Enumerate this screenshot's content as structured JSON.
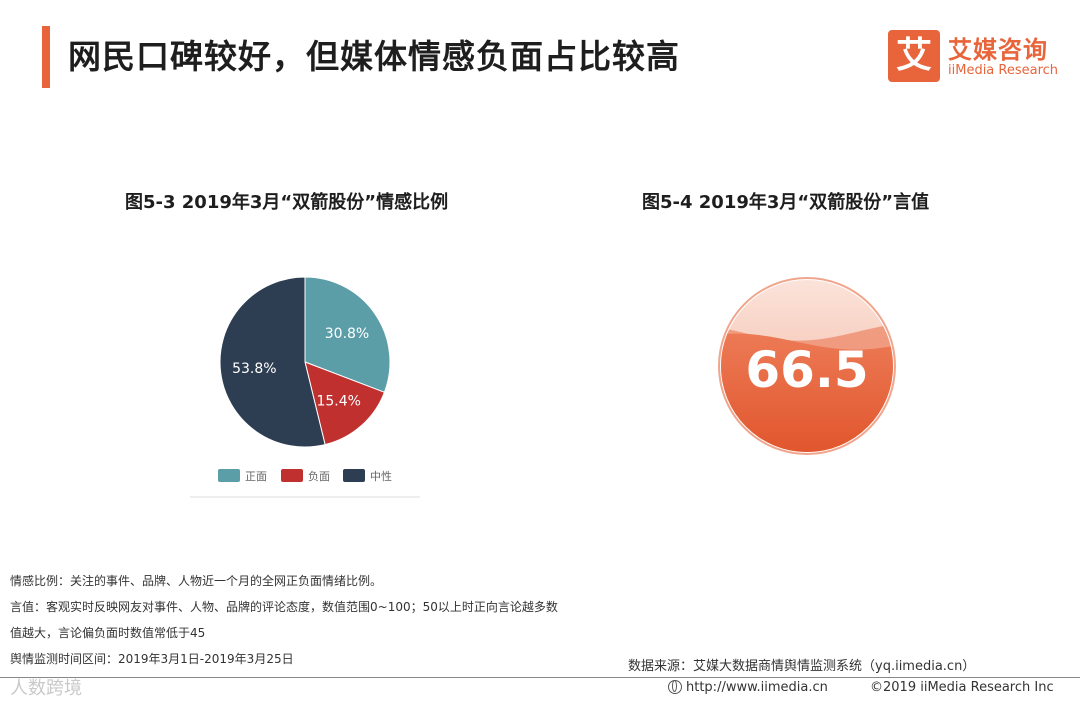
{
  "header": {
    "title": "网民口碑较好，但媒体情感负面占比较高",
    "logo_mark": "艾",
    "logo_cn": "艾媒咨询",
    "logo_en": "iiMedia Research"
  },
  "chart_data": [
    {
      "type": "pie",
      "title": "图5-3 2019年3月“双箭股份”情感比例",
      "categories": [
        "正面",
        "负面",
        "中性"
      ],
      "values": [
        30.8,
        15.4,
        53.8
      ],
      "data_labels": [
        "30.8%",
        "15.4%",
        "53.8%"
      ],
      "colors": [
        "#5b9ea8",
        "#c0302f",
        "#2d3e52"
      ],
      "legend": "bottom"
    },
    {
      "type": "gauge",
      "title": "图5-4 2019年3月“双箭股份”言值",
      "value": 66.5,
      "value_label": "66.5",
      "range": [
        0,
        100
      ],
      "colors": [
        "#e8643a",
        "#f3b3a3"
      ]
    }
  ],
  "notes": [
    "情感比例：关注的事件、品牌、人物近一个月的全网正负面情绪比例。",
    "言值：客观实时反映网友对事件、人物、品牌的评论态度，数值范围0~100；50以上时正向言论越多数",
    "值越大，言论偏负面时数值常低于45",
    "舆情监测时间区间：2019年3月1日-2019年3月25日"
  ],
  "source": "数据来源：艾媒大数据商情舆情监测系统（yq.iimedia.cn）",
  "footer": {
    "url": "http://www.iimedia.cn",
    "copyright": "©2019  iiMedia Research  Inc",
    "watermark": "人数跨境"
  }
}
